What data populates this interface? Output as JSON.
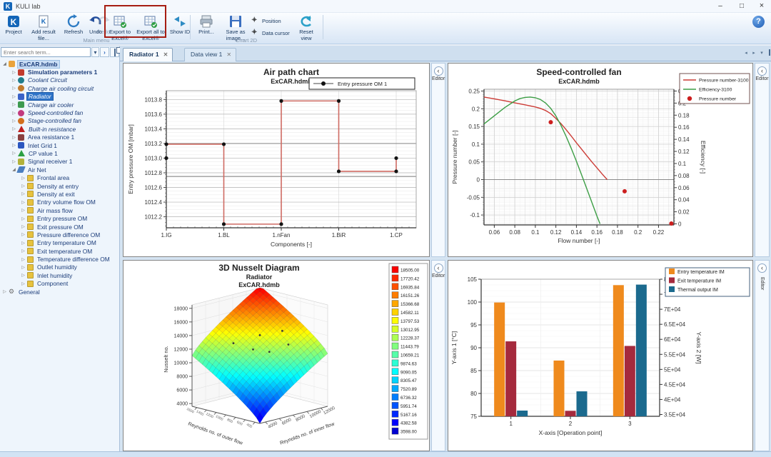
{
  "window": {
    "title": "KULI lab",
    "logo": "K"
  },
  "toolbar": {
    "groups": [
      {
        "label": "Main menu",
        "buttons": [
          {
            "label": "Project",
            "icon": "kuli"
          },
          {
            "label": "Add result file...",
            "icon": "addfile"
          },
          {
            "label": "Refresh",
            "icon": "refresh"
          },
          {
            "label": "Undo",
            "icon": "undo"
          },
          {
            "label": "Redo",
            "icon": "redo",
            "disabled": true
          },
          {
            "label": "Export to Excel®",
            "icon": "excel"
          },
          {
            "label": "Export all to Excel®",
            "icon": "excel"
          },
          {
            "label": "Show ID",
            "icon": "showid"
          }
        ]
      },
      {
        "label": "Chart 2D",
        "buttons": [
          {
            "label": "Print...",
            "icon": "print"
          },
          {
            "label": "Save as image...",
            "icon": "saveimg"
          },
          {
            "label": "Position",
            "icon": "crosshair",
            "small": true
          },
          {
            "label": "Data cursor",
            "icon": "crosshair",
            "small": true
          },
          {
            "label": "Reset view",
            "icon": "reset"
          }
        ]
      }
    ],
    "help_label": "?"
  },
  "sidebar": {
    "search_placeholder": "Enter search term...",
    "tree": [
      {
        "label": "ExCAR.hdmb",
        "level": 0,
        "arrow": "exp",
        "icon": "folder",
        "color": "#e9a33c",
        "bold": true,
        "sel": "soft"
      },
      {
        "label": "Simulation parameters 1",
        "level": 1,
        "arrow": "col",
        "icon": "square",
        "color": "#c23b2e",
        "bold": true
      },
      {
        "label": "Coolant Circuit",
        "level": 1,
        "arrow": "col",
        "icon": "circle",
        "color": "#1f7d8c",
        "italic": true
      },
      {
        "label": "Charge air cooling circuit",
        "level": 1,
        "arrow": "col",
        "icon": "circle",
        "color": "#c07a2c",
        "italic": true
      },
      {
        "label": "Radiator",
        "level": 1,
        "arrow": "col",
        "icon": "square",
        "color": "#3a62c8",
        "italic": true,
        "sel": "hard"
      },
      {
        "label": "Charge air cooler",
        "level": 1,
        "arrow": "col",
        "icon": "square",
        "color": "#3d9a50",
        "italic": true
      },
      {
        "label": "Speed-controlled fan",
        "level": 1,
        "arrow": "col",
        "icon": "circle",
        "color": "#c23a7e",
        "italic": true
      },
      {
        "label": "Stage-controlled fan",
        "level": 1,
        "arrow": "col",
        "icon": "circle",
        "color": "#d2701e",
        "italic": true
      },
      {
        "label": "Built-in resistance",
        "level": 1,
        "arrow": "col",
        "icon": "triangle",
        "color": "#c02020",
        "italic": true
      },
      {
        "label": "Area resistance 1",
        "level": 1,
        "arrow": "col",
        "icon": "square",
        "color": "#8a4040"
      },
      {
        "label": "Inlet Grid 1",
        "level": 1,
        "arrow": "col",
        "icon": "square",
        "color": "#2a56c0"
      },
      {
        "label": "CP value 1",
        "level": 1,
        "arrow": "col",
        "icon": "triangle",
        "color": "#2ca044"
      },
      {
        "label": "Signal receiver 1",
        "level": 1,
        "arrow": "col",
        "icon": "square",
        "color": "#b2b23a"
      },
      {
        "label": "Air Net",
        "level": 1,
        "arrow": "exp",
        "icon": "wing",
        "color": "#4a7ec0"
      },
      {
        "label": "Frontal area",
        "level": 2,
        "arrow": "col",
        "icon": "doc",
        "color": "#e7c23e"
      },
      {
        "label": "Density at entry",
        "level": 2,
        "arrow": "col",
        "icon": "doc",
        "color": "#e7c23e"
      },
      {
        "label": "Density at exit",
        "level": 2,
        "arrow": "col",
        "icon": "doc",
        "color": "#e7c23e"
      },
      {
        "label": "Entry volume flow OM",
        "level": 2,
        "arrow": "col",
        "icon": "doc",
        "color": "#e7c23e"
      },
      {
        "label": "Air mass flow",
        "level": 2,
        "arrow": "col",
        "icon": "doc",
        "color": "#e7c23e"
      },
      {
        "label": "Entry pressure OM",
        "level": 2,
        "arrow": "col",
        "icon": "doc",
        "color": "#e7c23e"
      },
      {
        "label": "Exit pressure OM",
        "level": 2,
        "arrow": "col",
        "icon": "doc",
        "color": "#e7c23e"
      },
      {
        "label": "Pressure difference OM",
        "level": 2,
        "arrow": "col",
        "icon": "doc",
        "color": "#e7c23e"
      },
      {
        "label": "Entry temperature OM",
        "level": 2,
        "arrow": "col",
        "icon": "doc",
        "color": "#e7c23e"
      },
      {
        "label": "Exit temperature OM",
        "level": 2,
        "arrow": "col",
        "icon": "doc",
        "color": "#e7c23e"
      },
      {
        "label": "Temperature difference OM",
        "level": 2,
        "arrow": "col",
        "icon": "doc",
        "color": "#e7c23e"
      },
      {
        "label": "Outlet humidity",
        "level": 2,
        "arrow": "col",
        "icon": "doc",
        "color": "#e7c23e"
      },
      {
        "label": "Inlet humidity",
        "level": 2,
        "arrow": "col",
        "icon": "doc",
        "color": "#e7c23e"
      },
      {
        "label": "Component",
        "level": 2,
        "arrow": "col",
        "icon": "doc",
        "color": "#e7c23e"
      },
      {
        "label": "General",
        "level": 0,
        "arrow": "col",
        "icon": "gear",
        "color": "#707070"
      }
    ]
  },
  "tabs": [
    {
      "label": "Radiator 1",
      "active": true
    },
    {
      "label": "Data view 1",
      "active": false
    }
  ],
  "editor_label": "Editor",
  "chart_data": [
    {
      "type": "line",
      "title": "Air path chart",
      "subtitle": "ExCAR.hdmb",
      "xlabel": "Components [-]",
      "ylabel": "Entry pressure OM [mbar]",
      "categories": [
        "1.IG",
        "1.BL",
        "1.nFan",
        "1.BiR",
        "1.CP"
      ],
      "ylim": [
        1012.05,
        1013.92
      ],
      "yticks": [
        1012.2,
        1012.4,
        1012.6,
        1012.8,
        1013.0,
        1013.2,
        1013.4,
        1013.6,
        1013.8
      ],
      "ref_lines": [
        1013.2,
        1012.75
      ],
      "series": [
        {
          "name": "Entry pressure OM 1",
          "line_color": "#cf6b63",
          "marker_color": "#141414",
          "path": [
            [
              0,
              1013.19
            ],
            [
              1,
              1013.19
            ],
            [
              1,
              1012.1
            ],
            [
              2,
              1012.1
            ],
            [
              2,
              1013.78
            ],
            [
              3,
              1013.78
            ],
            [
              3,
              1012.82
            ],
            [
              4,
              1012.82
            ],
            [
              4,
              1013.0
            ]
          ],
          "extra_markers": [
            [
              0,
              1013.0
            ]
          ]
        }
      ]
    },
    {
      "type": "line",
      "title": "Speed-controlled fan",
      "subtitle": "ExCAR.hdmb",
      "xlabel": "Flow number [-]",
      "ylabel_left": "Pressure number [-]",
      "ylabel_right": "Efficiency [-]",
      "xlim": [
        0.05,
        0.235
      ],
      "xticks": [
        0.06,
        0.08,
        0.1,
        0.12,
        0.14,
        0.16,
        0.18,
        0.2,
        0.22
      ],
      "ylim_left": [
        -0.128,
        0.255
      ],
      "yticks_left": [
        -0.1,
        -0.05,
        0,
        0.05,
        0.1,
        0.15,
        0.2,
        0.25
      ],
      "yticks_right": [
        0,
        0.02,
        0.04,
        0.06,
        0.08,
        0.1,
        0.12,
        0.14,
        0.16,
        0.18,
        0.2,
        0.22
      ],
      "legend": [
        {
          "name": "Pressure number-3100",
          "type": "line",
          "color": "#cc3b35"
        },
        {
          "name": "Efficiency-3100",
          "type": "line",
          "color": "#3c9e45"
        },
        {
          "name": "Pressure number",
          "type": "dot",
          "color": "#cc1f1f"
        }
      ],
      "pressure_curve": [
        [
          0.05,
          0.233
        ],
        [
          0.055,
          0.2305
        ],
        [
          0.06,
          0.228
        ],
        [
          0.07,
          0.2225
        ],
        [
          0.08,
          0.2165
        ],
        [
          0.09,
          0.211
        ],
        [
          0.1,
          0.205
        ],
        [
          0.105,
          0.201
        ],
        [
          0.11,
          0.195
        ],
        [
          0.115,
          0.186
        ],
        [
          0.12,
          0.173
        ],
        [
          0.125,
          0.158
        ],
        [
          0.13,
          0.141
        ],
        [
          0.135,
          0.123
        ],
        [
          0.14,
          0.104
        ],
        [
          0.145,
          0.086
        ],
        [
          0.15,
          0.068
        ],
        [
          0.155,
          0.05
        ],
        [
          0.16,
          0.033
        ],
        [
          0.165,
          0.016
        ],
        [
          0.17,
          0.0
        ]
      ],
      "efficiency_curve": [
        [
          0.05,
          0.157
        ],
        [
          0.06,
          0.18
        ],
        [
          0.07,
          0.203
        ],
        [
          0.08,
          0.222
        ],
        [
          0.085,
          0.2285
        ],
        [
          0.09,
          0.232
        ],
        [
          0.095,
          0.233
        ],
        [
          0.1,
          0.231
        ],
        [
          0.105,
          0.226
        ],
        [
          0.11,
          0.216
        ],
        [
          0.115,
          0.201
        ],
        [
          0.12,
          0.18
        ],
        [
          0.125,
          0.153
        ],
        [
          0.13,
          0.122
        ],
        [
          0.135,
          0.088
        ],
        [
          0.14,
          0.052
        ],
        [
          0.145,
          0.014
        ],
        [
          0.15,
          -0.025
        ],
        [
          0.155,
          -0.064
        ],
        [
          0.16,
          -0.103
        ],
        [
          0.163,
          -0.125
        ]
      ],
      "points": [
        [
          0.115,
          0.162
        ],
        [
          0.187,
          -0.033
        ],
        [
          0.2325,
          -0.124
        ]
      ]
    },
    {
      "type": "surface3d",
      "title": "3D Nusselt Diagram",
      "subtitle": "Radiator",
      "subtitle2": "ExCAR.hdmb",
      "zlabel": "Nusselt no.",
      "xlabel": "Reynolds no. of outer flow",
      "ylabel": "Reynolds no. of inner flow",
      "zmin": 3598.0,
      "zmax": 18505.0,
      "zticks": [
        4000,
        6000,
        8000,
        10000,
        12000,
        14000,
        16000,
        18000
      ],
      "inner_ticks": [
        4000,
        6000,
        8000,
        10000,
        12000
      ],
      "outer_ticks": [
        400,
        600,
        800,
        1000,
        1200,
        1400,
        1600
      ],
      "scatter": [
        [
          0.72,
          0.33
        ],
        [
          0.52,
          0.42
        ],
        [
          0.58,
          0.58
        ],
        [
          0.38,
          0.52
        ],
        [
          0.3,
          0.72
        ],
        [
          0.45,
          0.78
        ]
      ],
      "legend_values": [
        "18505.00",
        "17720.42",
        "16935.84",
        "16151.26",
        "15366.68",
        "14582.11",
        "13797.53",
        "13012.95",
        "12228.37",
        "11443.79",
        "10659.21",
        "9874.63",
        "9090.05",
        "8305.47",
        "7520.89",
        "6736.32",
        "5951.74",
        "5167.16",
        "4382.58",
        "3598.00"
      ]
    },
    {
      "type": "bar",
      "xlabel": "X-axis [Operation point]",
      "ylabel_left": "Y-axis 1 [°C]",
      "ylabel_right": "Y-axis 2 [W]",
      "categories": [
        "1",
        "2",
        "3"
      ],
      "ylim_left": [
        75,
        105
      ],
      "yticks_left": [
        75,
        80,
        85,
        90,
        95,
        100,
        105
      ],
      "ylim_right": [
        34400,
        80000
      ],
      "yticks_right": [
        {
          "v": 35000,
          "label": "3.5E+04"
        },
        {
          "v": 40000,
          "label": "4E+04"
        },
        {
          "v": 45000,
          "label": "4.5E+04"
        },
        {
          "v": 50000,
          "label": "5E+04"
        },
        {
          "v": 55000,
          "label": "5.5E+04"
        },
        {
          "v": 60000,
          "label": "6E+04"
        },
        {
          "v": 65000,
          "label": "6.5E+04"
        },
        {
          "v": 70000,
          "label": "7E+04"
        },
        {
          "v": 75000,
          "label": "7.5E+04"
        },
        {
          "v": 80000,
          "label": "8E+04"
        }
      ],
      "series": [
        {
          "name": "Entry temperature IM",
          "color": "#ef8a1d",
          "axis": "left",
          "values": [
            99.9,
            87.2,
            103.7
          ]
        },
        {
          "name": "Exit temperature IM",
          "color": "#a52a3d",
          "axis": "left",
          "values": [
            91.4,
            76.2,
            90.4
          ]
        },
        {
          "name": "Thermal output IM",
          "color": "#1b6a8e",
          "axis": "right",
          "values": [
            36300,
            42700,
            78200
          ]
        }
      ]
    }
  ]
}
